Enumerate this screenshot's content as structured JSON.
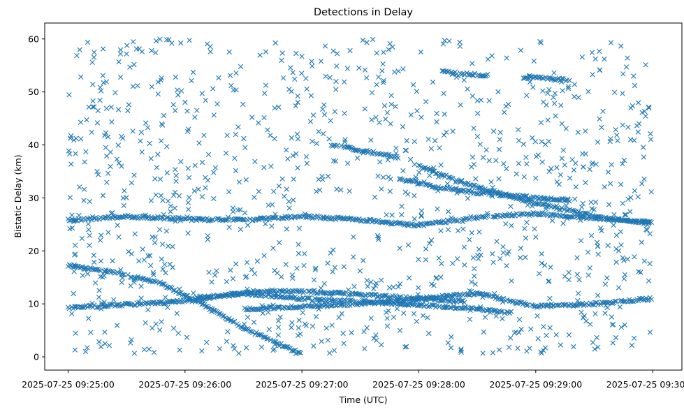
{
  "chart_data": {
    "type": "scatter",
    "title": "Detections in Delay",
    "xlabel": "Time (UTC)",
    "ylabel": "Bistatic Delay (km)",
    "x_start": "2025-07-25 09:25:00",
    "x_end": "2025-07-25 09:30:00",
    "xlim": [
      "2025-07-25 09:24:48",
      "2025-07-25 09:30:15"
    ],
    "ylim": [
      -2.5,
      63
    ],
    "xticks": [
      "2025-07-25 09:25:00",
      "2025-07-25 09:26:00",
      "2025-07-25 09:27:00",
      "2025-07-25 09:28:00",
      "2025-07-25 09:29:00",
      "2025-07-25 09:30:00"
    ],
    "yticks": [
      0,
      10,
      20,
      30,
      40,
      50,
      60
    ],
    "grid": false,
    "legend": "none",
    "marker": "x",
    "color": "#1f77b4",
    "tracks": [
      {
        "t": [
          "09:25:00",
          "09:25:24",
          "09:25:48",
          "09:26:06",
          "09:26:30",
          "09:26:54",
          "09:27:00"
        ],
        "delay_km": [
          17.2,
          16.0,
          13.8,
          10.5,
          5.5,
          1.5,
          0.8
        ]
      },
      {
        "t": [
          "09:25:00",
          "09:25:48",
          "09:26:15",
          "09:26:30",
          "09:27:00",
          "09:27:36",
          "09:28:00",
          "09:28:24",
          "09:28:48"
        ],
        "delay_km": [
          9.3,
          10.2,
          11.2,
          12.0,
          11.0,
          10.3,
          9.8,
          9.2,
          8.3
        ]
      },
      {
        "t": [
          "09:26:06",
          "09:26:48",
          "09:27:30",
          "09:28:00",
          "09:28:24"
        ],
        "delay_km": [
          11.3,
          12.5,
          11.8,
          11.0,
          10.5
        ]
      },
      {
        "t": [
          "09:26:30",
          "09:27:00",
          "09:27:30",
          "09:28:00",
          "09:28:30",
          "09:29:00",
          "09:29:30",
          "09:30:00"
        ],
        "delay_km": [
          9.0,
          9.5,
          10.0,
          11.0,
          12.0,
          9.5,
          10.0,
          11.0
        ]
      },
      {
        "t": [
          "09:25:00",
          "09:25:30",
          "09:26:00",
          "09:26:30",
          "09:27:00",
          "09:27:30",
          "09:28:00",
          "09:28:30",
          "09:29:00",
          "09:29:30",
          "09:30:00"
        ],
        "delay_km": [
          25.8,
          26.5,
          26.0,
          25.8,
          26.5,
          25.9,
          24.8,
          26.4,
          27.0,
          26.2,
          25.4
        ]
      },
      {
        "t": [
          "09:28:00",
          "09:28:30",
          "09:29:00",
          "09:29:30",
          "09:30:00"
        ],
        "delay_km": [
          36.0,
          32.0,
          29.0,
          26.5,
          25.0
        ]
      },
      {
        "t": [
          "09:27:15",
          "09:27:30",
          "09:27:50"
        ],
        "delay_km": [
          40.0,
          39.0,
          37.5
        ]
      },
      {
        "t": [
          "09:27:50",
          "09:28:10",
          "09:28:30",
          "09:29:00",
          "09:29:18"
        ],
        "delay_km": [
          33.5,
          32.0,
          31.0,
          30.0,
          29.5
        ]
      },
      {
        "t": [
          "09:28:12",
          "09:28:24",
          "09:28:36"
        ],
        "delay_km": [
          53.8,
          53.4,
          53.1
        ]
      },
      {
        "t": [
          "09:28:54",
          "09:29:06",
          "09:29:18"
        ],
        "delay_km": [
          52.8,
          52.6,
          52.1
        ]
      }
    ]
  }
}
